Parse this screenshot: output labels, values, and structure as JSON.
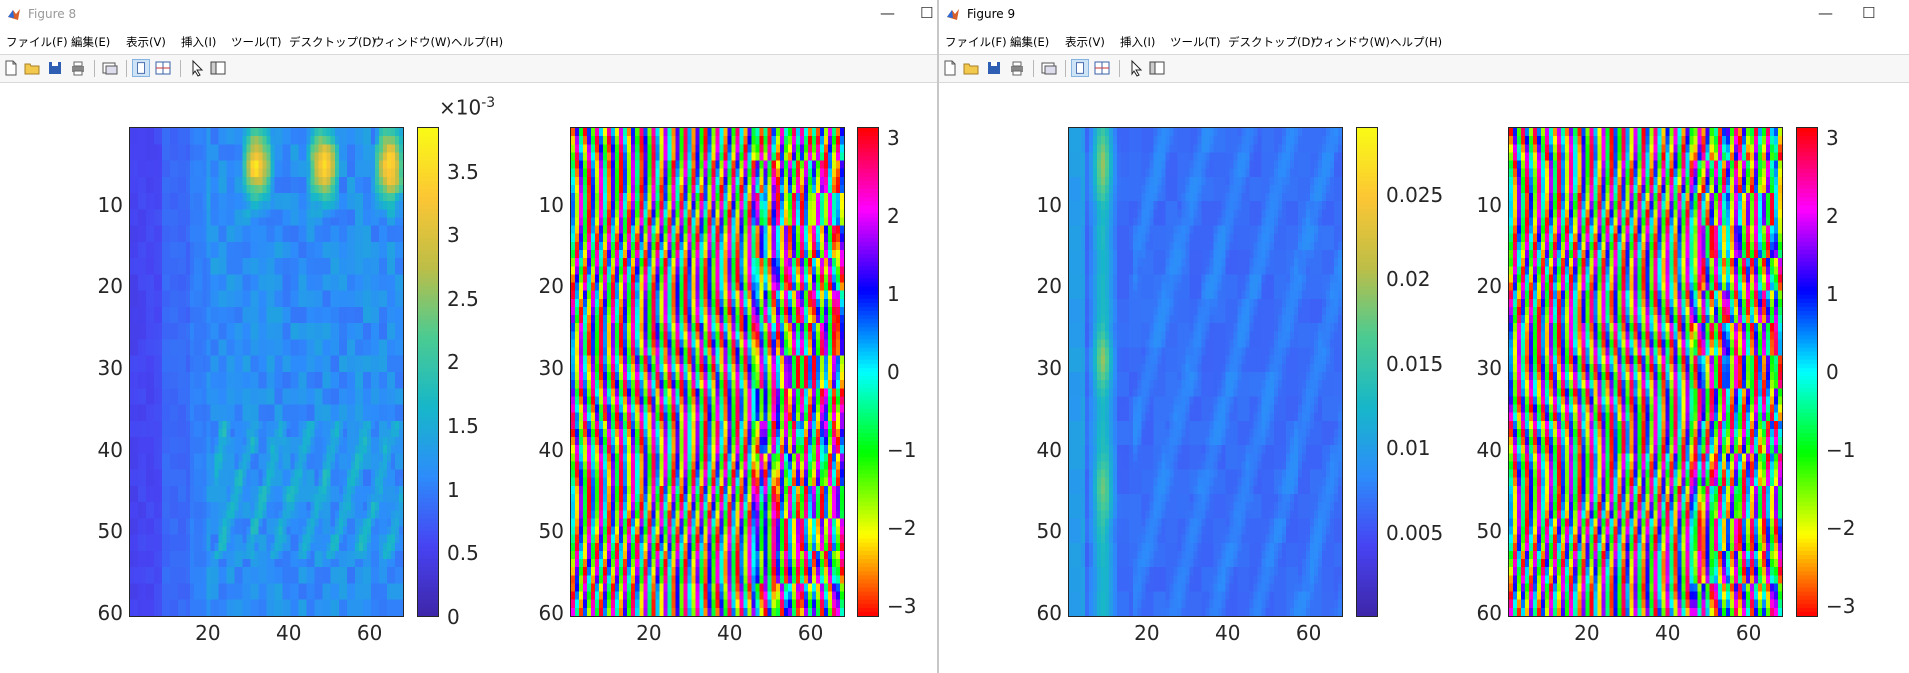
{
  "windows": [
    {
      "title": "Figure 8",
      "menu": [
        "ファイル(F)",
        "編集(E)",
        "表示(V)",
        "挿入(I)",
        "ツール(T)",
        "デスクトップ(D)",
        "ウィンドウ(W)",
        "ヘルプ(H)"
      ],
      "toolbar_icons": [
        "new-file-icon",
        "open-folder-icon",
        "save-icon",
        "print-icon",
        "link-plot-icon",
        "dock-single-icon",
        "tile-layout-icon",
        "pointer-icon",
        "property-inspector-icon"
      ]
    },
    {
      "title": "Figure 9",
      "menu": [
        "ファイル(F)",
        "編集(E)",
        "表示(V)",
        "挿入(I)",
        "ツール(T)",
        "デスクトップ(D)",
        "ウィンドウ(W)",
        "ヘルプ(H)"
      ],
      "toolbar_icons": [
        "new-file-icon",
        "open-folder-icon",
        "save-icon",
        "print-icon",
        "link-plot-icon",
        "dock-single-icon",
        "tile-layout-icon",
        "pointer-icon",
        "property-inspector-icon"
      ]
    }
  ],
  "colors": {
    "axis": "#262626",
    "parula": [
      "#3e26a8",
      "#4743f3",
      "#2d8cfb",
      "#17b7c9",
      "#4bcb92",
      "#bdbe47",
      "#fcc634",
      "#f9fb15"
    ],
    "hsv": [
      "#ff0000",
      "#ffff00",
      "#00ff00",
      "#00ffff",
      "#0000ff",
      "#ff00ff",
      "#ff0000"
    ]
  },
  "chart_data": [
    {
      "type": "heatmap",
      "figure": "Figure 8",
      "colormap": "parula",
      "x_range": [
        1,
        68
      ],
      "y_range": [
        1,
        60
      ],
      "y_direction": "reverse",
      "x_ticks": [
        20,
        40,
        60
      ],
      "y_ticks": [
        10,
        20,
        30,
        40,
        50,
        60
      ],
      "x_tick_labels": [
        "20",
        "40",
        "60"
      ],
      "y_tick_labels": [
        "10",
        "20",
        "30",
        "40",
        "50",
        "60"
      ],
      "colorbar": {
        "range": [
          0,
          3.85
        ],
        "ticks": [
          0,
          0.5,
          1,
          1.5,
          2,
          2.5,
          3,
          3.5
        ],
        "tick_labels": [
          "0",
          "0.5",
          "1",
          "1.5",
          "2",
          "2.5",
          "3",
          "3.5"
        ],
        "exponent_label": "×10",
        "exponent": "-3"
      },
      "description_values": {
        "background": 0.9,
        "dark_left_band_columns": [
          1,
          8
        ],
        "peaks_rows": [
          1,
          10
        ],
        "peak": 3.6
      }
    },
    {
      "type": "heatmap",
      "figure": "Figure 8",
      "colormap": "hsv",
      "x_range": [
        1,
        68
      ],
      "y_range": [
        1,
        60
      ],
      "y_direction": "reverse",
      "x_ticks": [
        20,
        40,
        60
      ],
      "y_ticks": [
        10,
        20,
        30,
        40,
        50,
        60
      ],
      "x_tick_labels": [
        "20",
        "40",
        "60"
      ],
      "y_tick_labels": [
        "10",
        "20",
        "30",
        "40",
        "50",
        "60"
      ],
      "colorbar": {
        "range": [
          -3.1416,
          3.1416
        ],
        "ticks": [
          -3,
          -2,
          -1,
          0,
          1,
          2,
          3
        ],
        "tick_labels": [
          "−3",
          "−2",
          "−1",
          "0",
          "1",
          "2",
          "3"
        ]
      }
    },
    {
      "type": "heatmap",
      "figure": "Figure 9",
      "colormap": "parula",
      "x_range": [
        1,
        68
      ],
      "y_range": [
        1,
        60
      ],
      "y_direction": "reverse",
      "x_ticks": [
        20,
        40,
        60
      ],
      "y_ticks": [
        10,
        20,
        30,
        40,
        50,
        60
      ],
      "x_tick_labels": [
        "20",
        "40",
        "60"
      ],
      "y_tick_labels": [
        "10",
        "20",
        "30",
        "40",
        "50",
        "60"
      ],
      "colorbar": {
        "range": [
          0,
          0.029
        ],
        "ticks": [
          0.005,
          0.01,
          0.015,
          0.02,
          0.025
        ],
        "tick_labels": [
          "0.005",
          "0.01",
          "0.015",
          "0.02",
          "0.025"
        ]
      },
      "description_values": {
        "background": 0.005,
        "bright_column_range": [
          6,
          11
        ],
        "peak": 0.026
      }
    },
    {
      "type": "heatmap",
      "figure": "Figure 9",
      "colormap": "hsv",
      "x_range": [
        1,
        68
      ],
      "y_range": [
        1,
        60
      ],
      "y_direction": "reverse",
      "x_ticks": [
        20,
        40,
        60
      ],
      "y_ticks": [
        10,
        20,
        30,
        40,
        50,
        60
      ],
      "x_tick_labels": [
        "20",
        "40",
        "60"
      ],
      "y_tick_labels": [
        "10",
        "20",
        "30",
        "40",
        "50",
        "60"
      ],
      "colorbar": {
        "range": [
          -3.1416,
          3.1416
        ],
        "ticks": [
          -3,
          -2,
          -1,
          0,
          1,
          2,
          3
        ],
        "tick_labels": [
          "−3",
          "−2",
          "−1",
          "0",
          "1",
          "2",
          "3"
        ]
      }
    }
  ]
}
